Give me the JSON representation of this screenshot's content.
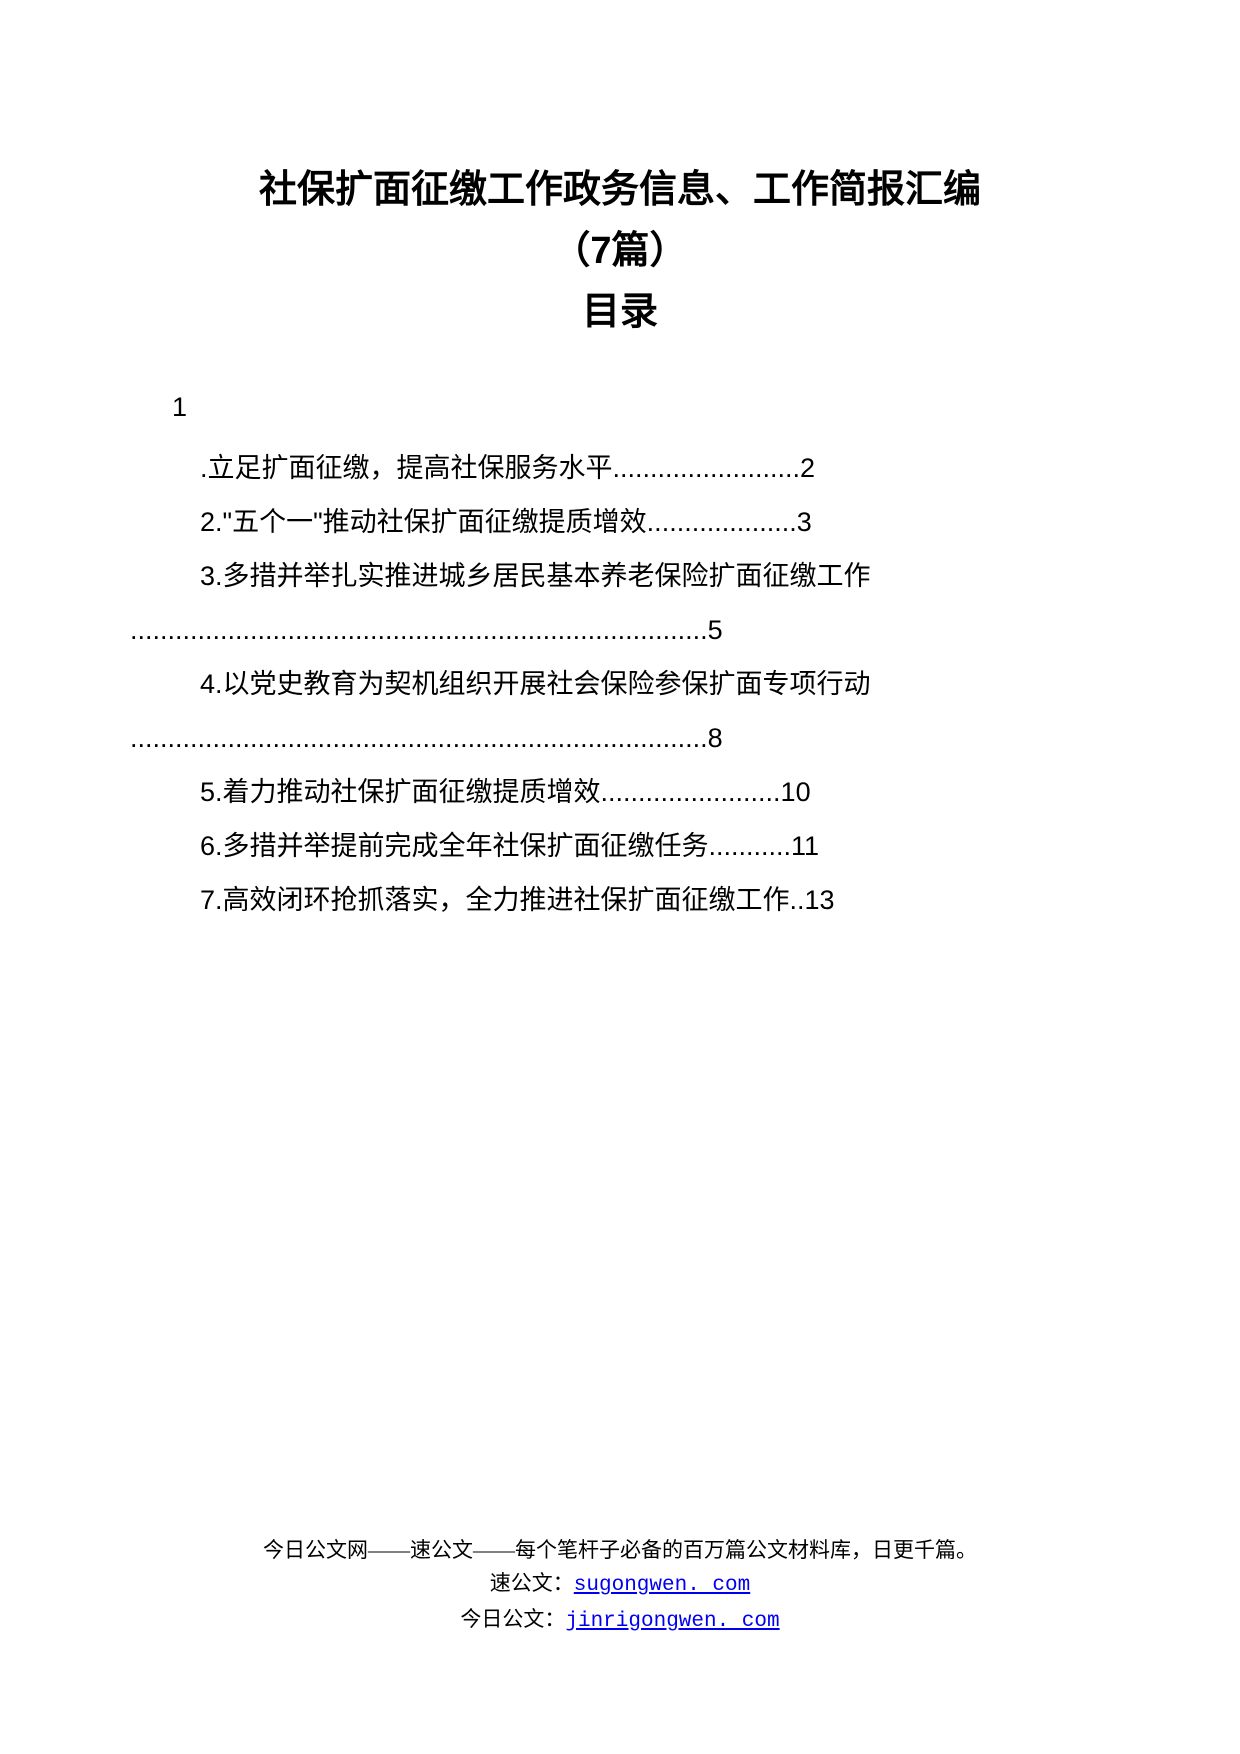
{
  "title": {
    "line1": "社保扩面征缴工作政务信息、工作简报汇编",
    "line2": "（7篇）",
    "line3": "目录"
  },
  "toc": {
    "leading_number": "1",
    "entries": [
      ".立足扩面征缴，提高社保服务水平.........................2",
      "2.\"五个一\"推动社保扩面征缴提质增效....................3",
      "3.多措并举扎实推进城乡居民基本养老保险扩面征缴工作"
    ],
    "continue1": ".............................................................................5",
    "entries2": [
      "4.以党史教育为契机组织开展社会保险参保扩面专项行动"
    ],
    "continue2": ".............................................................................8",
    "entries3": [
      "5.着力推动社保扩面征缴提质增效........................10",
      "6.多措并举提前完成全年社保扩面征缴任务...........11",
      "7.高效闭环抢抓落实，全力推进社保扩面征缴工作..13"
    ]
  },
  "footer": {
    "line1": "今日公文网——速公文——每个笔杆子必备的百万篇公文材料库，日更千篇。",
    "line2_prefix": "速公文：",
    "line2_link": "sugongwen. com",
    "line3_prefix": "今日公文：",
    "line3_link": "jinrigongwen. com"
  }
}
